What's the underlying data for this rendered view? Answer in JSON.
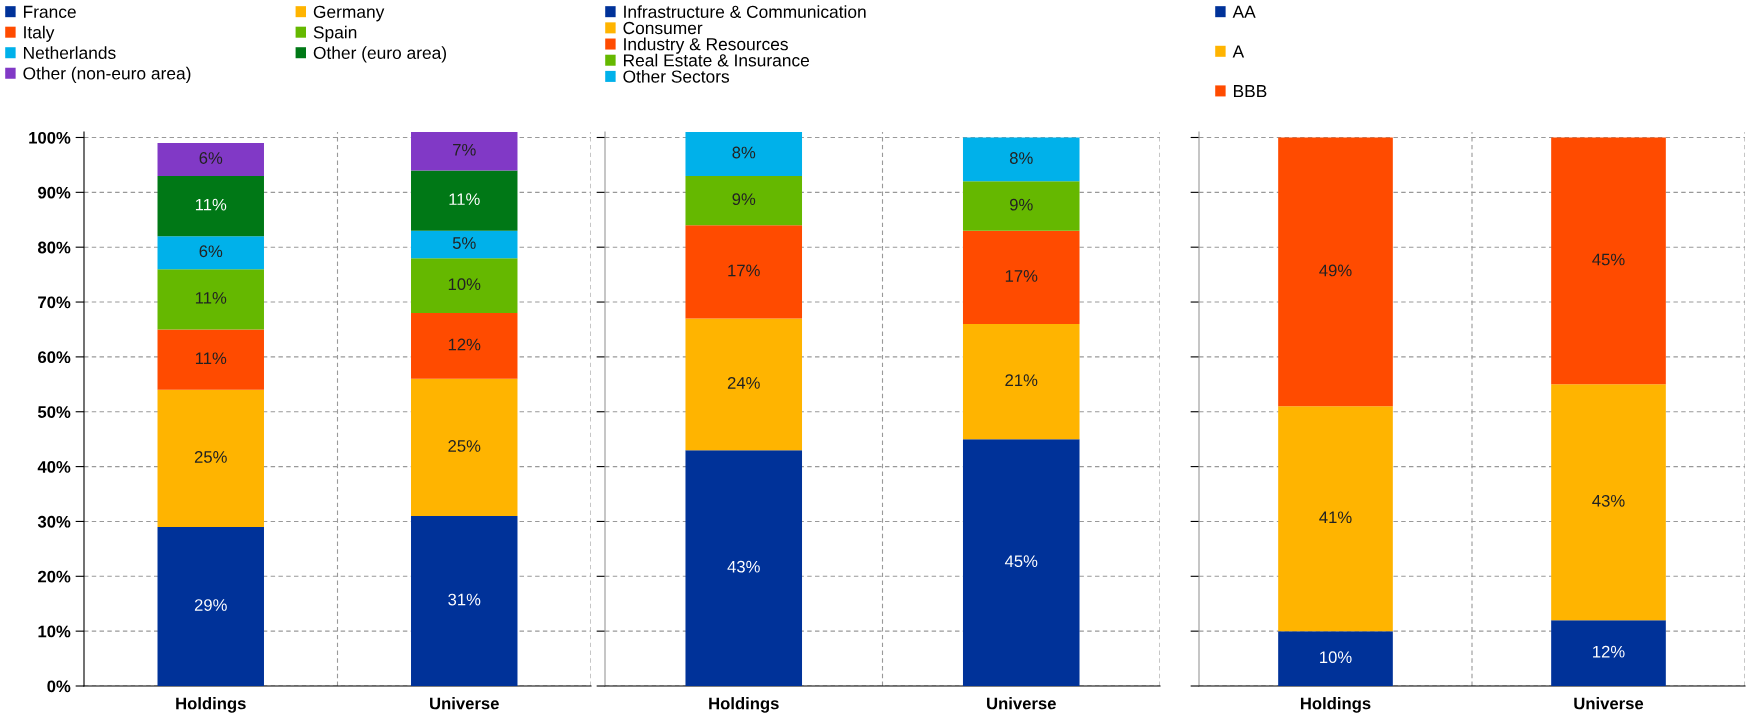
{
  "chart_data": [
    {
      "type": "bar",
      "stacked": true,
      "categories": [
        "Holdings",
        "Universe"
      ],
      "ylim": [
        0,
        101
      ],
      "yticks": [
        {
          "value": 0,
          "label": "0%"
        },
        {
          "value": 10,
          "label": "10%"
        },
        {
          "value": 20,
          "label": "20%"
        },
        {
          "value": 30,
          "label": "30%"
        },
        {
          "value": 40,
          "label": "40%"
        },
        {
          "value": 50,
          "label": "50%"
        },
        {
          "value": 60,
          "label": "60%"
        },
        {
          "value": 70,
          "label": "70%"
        },
        {
          "value": 80,
          "label": "80%"
        },
        {
          "value": 90,
          "label": "90%"
        },
        {
          "value": 100,
          "label": "100%"
        }
      ],
      "grid": true,
      "legend": "top",
      "series": [
        {
          "name": "France",
          "color": "#003299",
          "values": [
            29,
            31
          ],
          "value_labels": [
            "29%",
            "31%"
          ]
        },
        {
          "name": "Germany",
          "color": "#ffb400",
          "values": [
            25,
            25
          ],
          "value_labels": [
            "25%",
            "25%"
          ]
        },
        {
          "name": "Italy",
          "color": "#ff4b00",
          "values": [
            11,
            12
          ],
          "value_labels": [
            "11%",
            "12%"
          ]
        },
        {
          "name": "Spain",
          "color": "#65b800",
          "values": [
            11,
            10
          ],
          "value_labels": [
            "11%",
            "10%"
          ]
        },
        {
          "name": "Netherlands",
          "color": "#00b1ea",
          "values": [
            6,
            5
          ],
          "value_labels": [
            "6%",
            "5%"
          ]
        },
        {
          "name": "Other (euro area)",
          "color": "#007816",
          "values": [
            11,
            11
          ],
          "value_labels": [
            "11%",
            "11%"
          ]
        },
        {
          "name": "Other (non-euro area)",
          "color": "#8139c6",
          "values": [
            6,
            7
          ],
          "value_labels": [
            "6%",
            "7%"
          ]
        }
      ]
    },
    {
      "type": "bar",
      "stacked": true,
      "categories": [
        "Holdings",
        "Universe"
      ],
      "ylim": [
        0,
        101
      ],
      "yticks": [
        0,
        10,
        20,
        30,
        40,
        50,
        60,
        70,
        80,
        90,
        100
      ],
      "tick_labels": "x",
      "grid": true,
      "legend": "top",
      "series": [
        {
          "name": "Infrastructure & Communication",
          "color": "#003299",
          "values": [
            43,
            45
          ],
          "value_labels": [
            "43%",
            "45%"
          ]
        },
        {
          "name": "Consumer",
          "color": "#ffb400",
          "values": [
            24,
            21
          ],
          "value_labels": [
            "24%",
            "21%"
          ]
        },
        {
          "name": "Industry & Resources",
          "color": "#ff4b00",
          "values": [
            17,
            17
          ],
          "value_labels": [
            "17%",
            "17%"
          ]
        },
        {
          "name": "Real Estate & Insurance",
          "color": "#65b800",
          "values": [
            9,
            9
          ],
          "value_labels": [
            "9%",
            "9%"
          ]
        },
        {
          "name": "Other Sectors",
          "color": "#00b1ea",
          "values": [
            8,
            8
          ],
          "value_labels": [
            "8%",
            "8%"
          ]
        }
      ]
    },
    {
      "type": "bar",
      "stacked": true,
      "categories": [
        "Holdings",
        "Universe"
      ],
      "ylim": [
        0,
        101
      ],
      "yticks": [
        0,
        10,
        20,
        30,
        40,
        50,
        60,
        70,
        80,
        90,
        100
      ],
      "tick_labels": "x",
      "grid": true,
      "legend": "top",
      "series": [
        {
          "name": "AA",
          "color": "#003299",
          "values": [
            10,
            12
          ],
          "value_labels": [
            "10%",
            "12%"
          ]
        },
        {
          "name": "A",
          "color": "#ffb400",
          "values": [
            41,
            43
          ],
          "value_labels": [
            "41%",
            "43%"
          ]
        },
        {
          "name": "BBB",
          "color": "#ff4b00",
          "values": [
            49,
            45
          ],
          "value_labels": [
            "49%",
            "45%"
          ]
        }
      ]
    }
  ]
}
